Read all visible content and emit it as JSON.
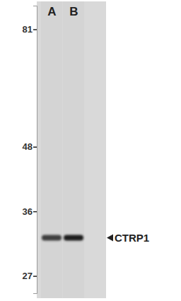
{
  "chart_data": {
    "type": "blot",
    "categories": [
      "A",
      "B"
    ],
    "values": [
      32,
      32
    ],
    "colors": [
      "#3c3c3c",
      "#1c1c1c"
    ],
    "ylim": [
      25,
      90
    ],
    "yticks": [
      27,
      36,
      48,
      81
    ],
    "log": "y",
    "annotation": "CTRP1"
  }
}
